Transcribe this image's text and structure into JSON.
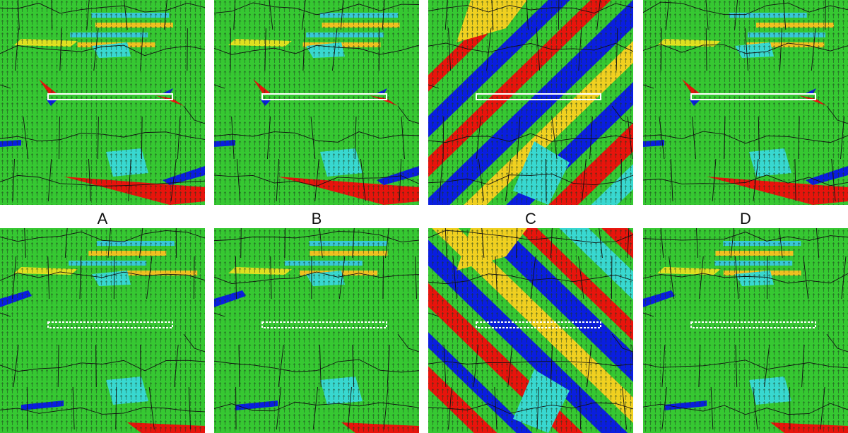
{
  "labels": [
    "A",
    "B",
    "C",
    "D"
  ]
}
